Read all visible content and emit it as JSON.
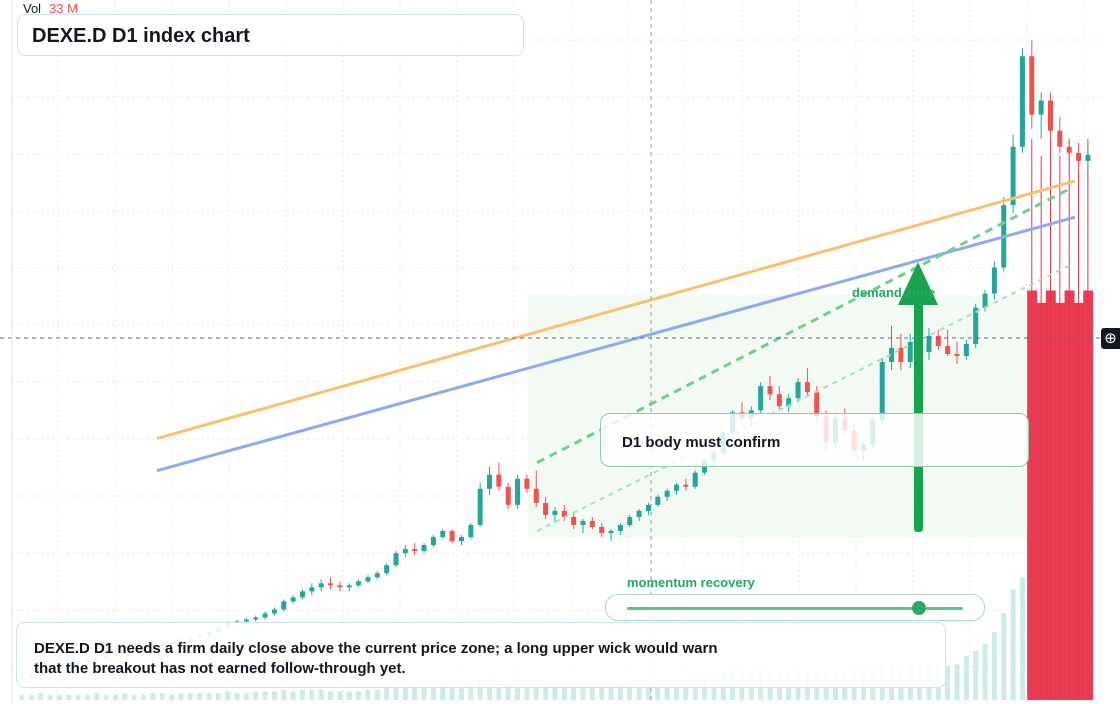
{
  "header": {
    "vol_label": "Vol",
    "vol_value": "33 M",
    "title": "DEXE.D D1 index chart"
  },
  "annotations": {
    "confirm": "D1 body must confirm",
    "demand": "demand zone",
    "momentum": "momentum recovery",
    "momentum_level": 0.86,
    "note": "DEXE.D D1 needs a firm daily close above the current price zone; a long upper wick would warn that the breakout has not earned follow-through yet."
  },
  "colors": {
    "up": "#26a69a",
    "down": "#ef5350",
    "volume": "#e8334a",
    "arrow": "#1aa251",
    "grid": "#e6e9ef"
  },
  "icons": {
    "crosshair": "crosshair-plus-icon"
  },
  "chart_data": {
    "type": "candlestick",
    "title": "DEXE.D D1 index chart",
    "grid": true,
    "candles": [
      [
        1.8,
        2.0,
        1.7,
        1.9
      ],
      [
        1.9,
        2.1,
        1.8,
        2.0
      ],
      [
        2.0,
        2.4,
        1.9,
        2.3
      ],
      [
        2.3,
        2.5,
        2.2,
        2.4
      ],
      [
        2.4,
        2.6,
        2.3,
        2.5
      ],
      [
        2.5,
        2.7,
        2.4,
        2.6
      ],
      [
        2.6,
        2.8,
        2.5,
        2.7
      ],
      [
        2.7,
        2.9,
        2.6,
        2.8
      ],
      [
        2.8,
        3.0,
        2.7,
        2.9
      ],
      [
        2.9,
        3.1,
        2.8,
        3.0
      ],
      [
        3.0,
        3.2,
        2.9,
        3.1
      ],
      [
        3.1,
        3.3,
        3.0,
        3.2
      ],
      [
        3.2,
        3.4,
        3.1,
        3.3
      ],
      [
        3.3,
        3.5,
        3.2,
        3.4
      ],
      [
        3.4,
        3.6,
        3.3,
        3.5
      ],
      [
        3.5,
        3.7,
        3.4,
        3.6
      ],
      [
        3.6,
        3.8,
        3.5,
        3.7
      ],
      [
        3.7,
        3.9,
        3.6,
        3.8
      ],
      [
        3.8,
        4.0,
        3.7,
        3.9
      ],
      [
        3.9,
        4.1,
        3.8,
        4.0
      ],
      [
        4.0,
        4.3,
        3.9,
        4.2
      ],
      [
        4.2,
        4.5,
        4.1,
        4.4
      ],
      [
        4.4,
        4.7,
        4.3,
        4.6
      ],
      [
        4.6,
        4.8,
        4.5,
        4.7
      ],
      [
        4.7,
        4.9,
        4.6,
        4.8
      ],
      [
        4.8,
        5.0,
        4.7,
        4.9
      ],
      [
        4.9,
        5.2,
        4.8,
        5.1
      ],
      [
        5.1,
        5.4,
        5.0,
        5.3
      ],
      [
        5.3,
        5.8,
        5.2,
        5.7
      ],
      [
        5.7,
        6.0,
        5.6,
        5.9
      ],
      [
        5.9,
        6.3,
        5.8,
        6.2
      ],
      [
        6.2,
        6.6,
        6.0,
        6.4
      ],
      [
        6.4,
        6.8,
        6.2,
        6.6
      ],
      [
        6.6,
        6.9,
        6.3,
        6.5
      ],
      [
        6.5,
        6.7,
        6.2,
        6.4
      ],
      [
        6.4,
        6.6,
        6.2,
        6.5
      ],
      [
        6.5,
        6.8,
        6.4,
        6.7
      ],
      [
        6.7,
        7.0,
        6.6,
        6.9
      ],
      [
        6.9,
        7.2,
        6.8,
        7.1
      ],
      [
        7.1,
        7.6,
        7.0,
        7.5
      ],
      [
        7.5,
        8.2,
        7.4,
        8.1
      ],
      [
        8.1,
        8.5,
        7.9,
        8.3
      ],
      [
        8.3,
        8.6,
        8.0,
        8.2
      ],
      [
        8.2,
        8.6,
        8.1,
        8.5
      ],
      [
        8.5,
        9.0,
        8.4,
        8.9
      ],
      [
        8.9,
        9.3,
        8.8,
        9.2
      ],
      [
        9.2,
        9.3,
        8.6,
        8.7
      ],
      [
        8.7,
        9.0,
        8.5,
        8.9
      ],
      [
        8.9,
        9.6,
        8.8,
        9.5
      ],
      [
        9.5,
        11.6,
        9.4,
        11.3
      ],
      [
        11.3,
        12.4,
        11.0,
        12.0
      ],
      [
        12.0,
        12.6,
        11.2,
        11.4
      ],
      [
        11.4,
        11.6,
        10.3,
        10.5
      ],
      [
        10.5,
        12.0,
        10.3,
        11.8
      ],
      [
        11.8,
        12.0,
        11.1,
        11.3
      ],
      [
        11.3,
        12.2,
        10.4,
        10.6
      ],
      [
        10.6,
        10.9,
        9.8,
        10.0
      ],
      [
        10.0,
        10.4,
        9.6,
        10.2
      ],
      [
        10.2,
        10.5,
        9.7,
        9.9
      ],
      [
        9.9,
        10.1,
        9.3,
        9.5
      ],
      [
        9.5,
        9.8,
        9.1,
        9.7
      ],
      [
        9.7,
        9.9,
        9.3,
        9.4
      ],
      [
        9.4,
        9.6,
        8.9,
        9.1
      ],
      [
        9.1,
        9.3,
        8.7,
        9.2
      ],
      [
        9.2,
        9.6,
        9.0,
        9.5
      ],
      [
        9.5,
        10.0,
        9.4,
        9.9
      ],
      [
        9.9,
        10.3,
        9.7,
        10.2
      ],
      [
        10.2,
        10.6,
        10.0,
        10.5
      ],
      [
        10.5,
        11.0,
        10.4,
        10.9
      ],
      [
        10.9,
        11.3,
        10.7,
        11.2
      ],
      [
        11.2,
        11.6,
        11.0,
        11.5
      ],
      [
        11.5,
        11.8,
        11.2,
        11.4
      ],
      [
        11.4,
        12.2,
        11.3,
        12.1
      ],
      [
        12.1,
        12.8,
        12.0,
        12.7
      ],
      [
        12.7,
        13.2,
        12.6,
        13.1
      ],
      [
        13.1,
        14.2,
        13.0,
        14.1
      ],
      [
        14.1,
        15.2,
        14.0,
        15.1
      ],
      [
        15.1,
        15.6,
        14.6,
        14.8
      ],
      [
        14.8,
        15.4,
        14.4,
        15.2
      ],
      [
        15.2,
        16.6,
        15.0,
        16.4
      ],
      [
        16.4,
        16.9,
        15.7,
        16.0
      ],
      [
        16.0,
        16.4,
        15.2,
        15.4
      ],
      [
        15.4,
        16.0,
        15.1,
        15.8
      ],
      [
        15.8,
        16.8,
        15.6,
        16.6
      ],
      [
        16.6,
        17.3,
        15.9,
        16.1
      ],
      [
        16.1,
        16.4,
        14.6,
        14.9
      ],
      [
        14.9,
        15.2,
        13.2,
        13.6
      ],
      [
        13.6,
        15.0,
        13.3,
        14.8
      ],
      [
        14.8,
        15.3,
        14.0,
        14.2
      ],
      [
        14.2,
        14.5,
        12.9,
        13.2
      ],
      [
        13.2,
        13.6,
        12.7,
        13.5
      ],
      [
        13.5,
        14.9,
        13.3,
        14.7
      ],
      [
        14.7,
        17.8,
        14.5,
        17.6
      ],
      [
        17.6,
        19.4,
        17.2,
        18.3
      ],
      [
        18.3,
        19.0,
        17.2,
        17.6
      ],
      [
        17.6,
        19.0,
        17.3,
        18.6
      ],
      [
        18.6,
        19.0,
        17.8,
        18.1
      ],
      [
        18.1,
        19.3,
        17.7,
        18.9
      ],
      [
        18.9,
        19.2,
        18.2,
        18.4
      ],
      [
        18.4,
        19.2,
        17.9,
        18.0
      ],
      [
        18.0,
        18.6,
        17.5,
        17.9
      ],
      [
        17.9,
        18.7,
        17.7,
        18.5
      ],
      [
        18.5,
        20.5,
        18.3,
        20.3
      ],
      [
        20.3,
        21.2,
        20.1,
        21.0
      ],
      [
        21.0,
        22.6,
        20.7,
        22.3
      ],
      [
        22.3,
        25.8,
        22.1,
        25.4
      ],
      [
        25.4,
        28.9,
        25.0,
        28.3
      ],
      [
        28.3,
        33.2,
        28.0,
        32.8
      ],
      [
        32.8,
        33.6,
        29.2,
        29.9
      ],
      [
        29.9,
        31.0,
        28.7,
        30.6
      ],
      [
        30.6,
        31.0,
        28.6,
        29.1
      ],
      [
        29.1,
        29.8,
        28.0,
        28.3
      ],
      [
        28.3,
        28.7,
        27.5,
        28.0
      ],
      [
        28.0,
        28.5,
        27.1,
        27.6
      ],
      [
        27.6,
        28.3,
        26.9,
        27.9
      ]
    ],
    "volume": [
      0.3,
      0.3,
      0.4,
      0.3,
      0.3,
      0.3,
      0.3,
      0.3,
      0.4,
      0.3,
      0.3,
      0.4,
      0.3,
      0.3,
      0.4,
      0.4,
      0.3,
      0.4,
      0.4,
      0.4,
      0.4,
      0.4,
      0.5,
      0.4,
      0.4,
      0.5,
      0.5,
      0.5,
      0.6,
      0.5,
      0.6,
      0.6,
      0.6,
      0.5,
      0.5,
      0.5,
      0.5,
      0.6,
      0.6,
      0.7,
      0.8,
      0.7,
      0.7,
      0.8,
      0.8,
      0.9,
      0.8,
      0.8,
      0.9,
      1.2,
      1.3,
      1.1,
      1.0,
      1.2,
      1.1,
      1.1,
      1.0,
      0.9,
      0.9,
      0.9,
      0.9,
      0.9,
      1.0,
      0.9,
      1.0,
      1.0,
      1.1,
      1.1,
      1.2,
      1.2,
      1.2,
      1.1,
      1.3,
      1.4,
      1.4,
      1.6,
      1.7,
      1.5,
      1.6,
      1.8,
      1.6,
      1.5,
      1.6,
      1.7,
      1.6,
      1.5,
      1.6,
      1.5,
      1.6,
      1.5,
      1.6,
      1.8,
      2.0,
      1.9,
      1.9,
      2.0,
      2.1,
      2.1,
      2.0,
      2.0,
      2.1,
      2.6,
      2.9,
      3.3,
      4.0,
      5.1,
      6.5,
      7.2,
      33,
      32,
      33,
      32,
      33,
      32,
      33
    ],
    "lines": {
      "orange": [
        [
          0,
          13.8
        ],
        [
          113,
          26.6
        ]
      ],
      "blue": [
        [
          0,
          12.2
        ],
        [
          113,
          24.8
        ]
      ],
      "green_dash_upper": [
        [
          46,
          12.6
        ],
        [
          112,
          26.2
        ]
      ],
      "green_dash_lower": [
        [
          46,
          9.2
        ],
        [
          112,
          22.4
        ]
      ]
    },
    "ylim": [
      0.8,
      35
    ],
    "volume_ylim": [
      0,
      40
    ]
  }
}
